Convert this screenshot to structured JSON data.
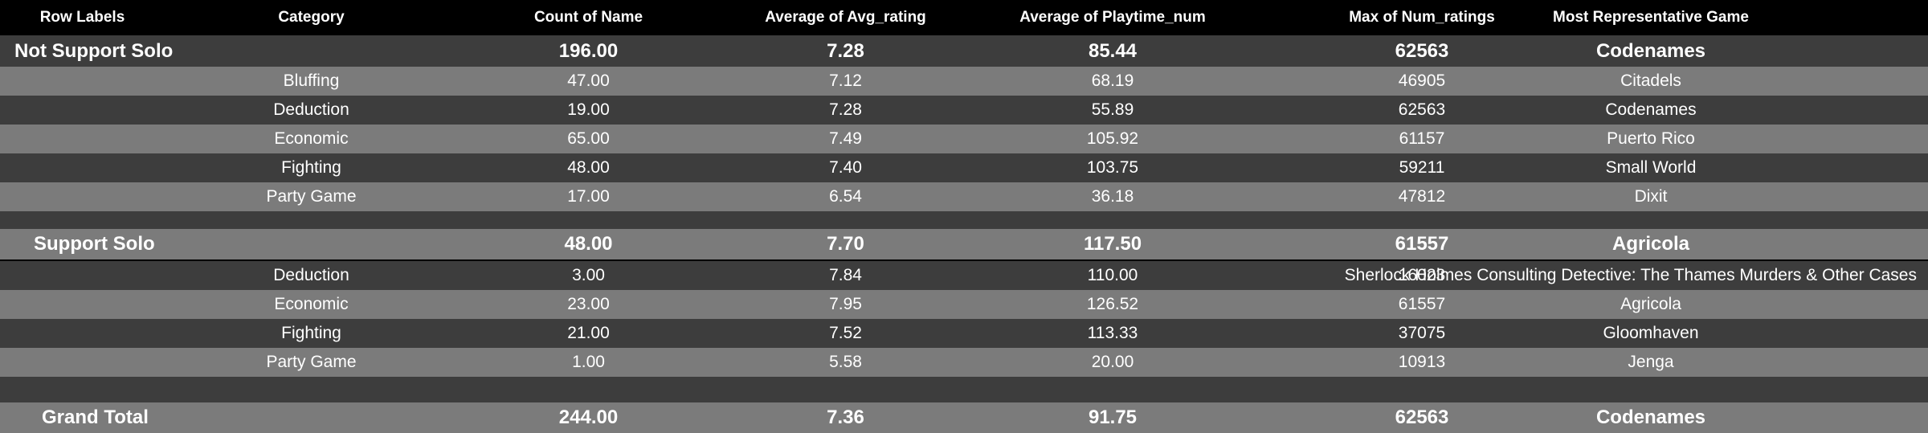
{
  "headers": {
    "row_labels": "Row Labels",
    "category": "Category",
    "count": "Count of Name",
    "avg_rating": "Average of Avg_rating",
    "avg_playtime": "Average of Playtime_num",
    "max_ratings": "Max of Num_ratings",
    "game": "Most Representative Game"
  },
  "not_support": {
    "label": "Not Support Solo",
    "count": "196.00",
    "avg_rating": "7.28",
    "avg_playtime": "85.44",
    "max_ratings": "62563",
    "game": "Codenames",
    "rows": [
      {
        "category": "Bluffing",
        "count": "47.00",
        "avg_rating": "7.12",
        "avg_playtime": "68.19",
        "max_ratings": "46905",
        "game": "Citadels"
      },
      {
        "category": "Deduction",
        "count": "19.00",
        "avg_rating": "7.28",
        "avg_playtime": "55.89",
        "max_ratings": "62563",
        "game": "Codenames"
      },
      {
        "category": "Economic",
        "count": "65.00",
        "avg_rating": "7.49",
        "avg_playtime": "105.92",
        "max_ratings": "61157",
        "game": "Puerto Rico"
      },
      {
        "category": "Fighting",
        "count": "48.00",
        "avg_rating": "7.40",
        "avg_playtime": "103.75",
        "max_ratings": "59211",
        "game": "Small World"
      },
      {
        "category": "Party Game",
        "count": "17.00",
        "avg_rating": "6.54",
        "avg_playtime": "36.18",
        "max_ratings": "47812",
        "game": "Dixit"
      }
    ]
  },
  "support": {
    "label": "Support Solo",
    "count": "48.00",
    "avg_rating": "7.70",
    "avg_playtime": "117.50",
    "max_ratings": "61557",
    "game": "Agricola",
    "rows": [
      {
        "category": "Deduction",
        "count": "3.00",
        "avg_rating": "7.84",
        "avg_playtime": "110.00",
        "max_ratings": "16023",
        "game": "Sherlock Holmes Consulting Detective: The Thames Murders & Other Cases"
      },
      {
        "category": "Economic",
        "count": "23.00",
        "avg_rating": "7.95",
        "avg_playtime": "126.52",
        "max_ratings": "61557",
        "game": "Agricola"
      },
      {
        "category": "Fighting",
        "count": "21.00",
        "avg_rating": "7.52",
        "avg_playtime": "113.33",
        "max_ratings": "37075",
        "game": "Gloomhaven"
      },
      {
        "category": "Party Game",
        "count": "1.00",
        "avg_rating": "5.58",
        "avg_playtime": "20.00",
        "max_ratings": "10913",
        "game": "Jenga"
      }
    ]
  },
  "grand_total": {
    "label": "Grand Total",
    "count": "244.00",
    "avg_rating": "7.36",
    "avg_playtime": "91.75",
    "max_ratings": "62563",
    "game": "Codenames"
  }
}
